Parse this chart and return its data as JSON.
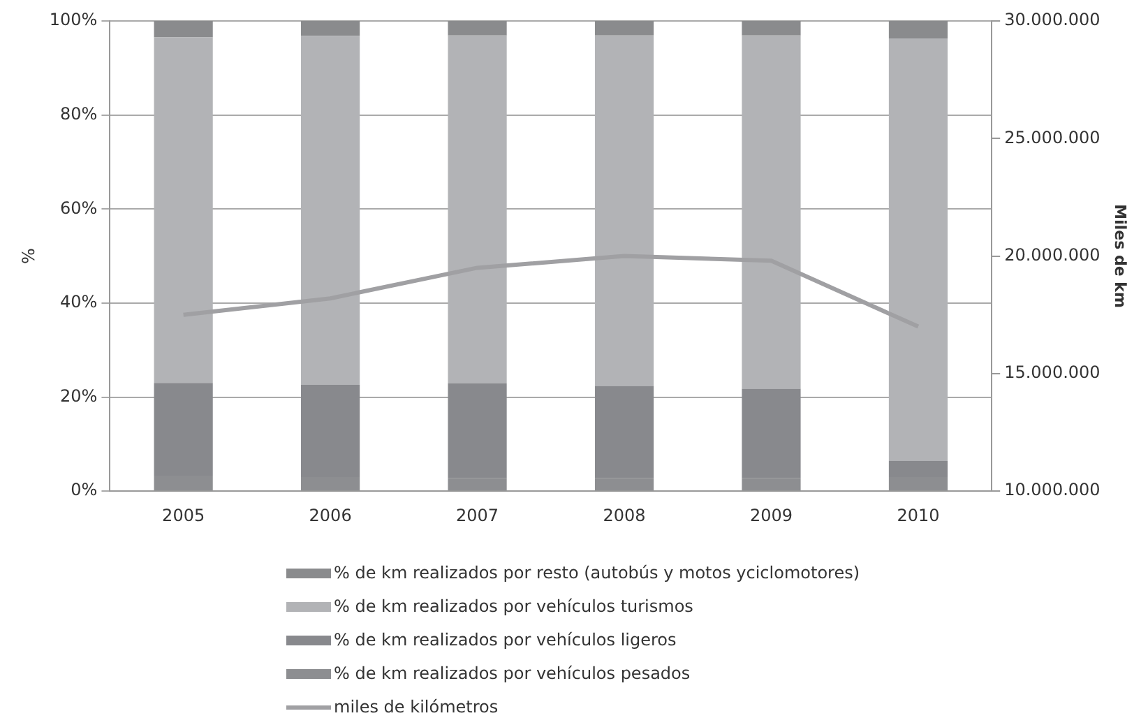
{
  "chart_data": {
    "type": "bar",
    "stacked": true,
    "categories": [
      "2005",
      "2006",
      "2007",
      "2008",
      "2009",
      "2010"
    ],
    "ylabel": "%",
    "y2label": "Miles de km",
    "ylim": [
      0,
      100
    ],
    "yticks": [
      {
        "value": 0,
        "label": "0%"
      },
      {
        "value": 20,
        "label": "20%"
      },
      {
        "value": 40,
        "label": "40%"
      },
      {
        "value": 60,
        "label": "60%"
      },
      {
        "value": 80,
        "label": "80%"
      },
      {
        "value": 100,
        "label": "100%"
      }
    ],
    "y2lim": [
      10000000,
      30000000
    ],
    "y2ticks": [
      {
        "value": 10000000,
        "label": "10.000.000"
      },
      {
        "value": 15000000,
        "label": "15.000.000"
      },
      {
        "value": 20000000,
        "label": "20.000.000"
      },
      {
        "value": 25000000,
        "label": "25.000.000"
      },
      {
        "value": 30000000,
        "label": "30.000.000"
      }
    ],
    "grid": "y",
    "legend": "bottom",
    "series": [
      {
        "name": "% de km realizados por vehículos pesados",
        "color": "#8d8e91",
        "values": [
          3.3,
          3.0,
          2.8,
          2.8,
          2.8,
          3.0
        ]
      },
      {
        "name": "% de km realizados por vehículos ligeros",
        "color": "#88898d",
        "values": [
          19.7,
          19.6,
          20.1,
          19.6,
          19.0,
          3.5
        ]
      },
      {
        "name": "% de km realizados por vehículos turismos",
        "color": "#b2b3b6",
        "values": [
          73.5,
          74.2,
          74.0,
          74.5,
          75.1,
          89.8
        ]
      },
      {
        "name": "% de km realizados por resto (autobús y motos yciclomotores)",
        "color": "#8a8b8d",
        "values": [
          3.5,
          3.2,
          3.1,
          3.1,
          3.1,
          3.7
        ]
      },
      {
        "name": "miles de kilómetros",
        "type": "line",
        "axis": "y2",
        "color": "#a0a0a3",
        "values": [
          17500000,
          18200000,
          19500000,
          20000000,
          19800000,
          17000000
        ]
      }
    ]
  }
}
